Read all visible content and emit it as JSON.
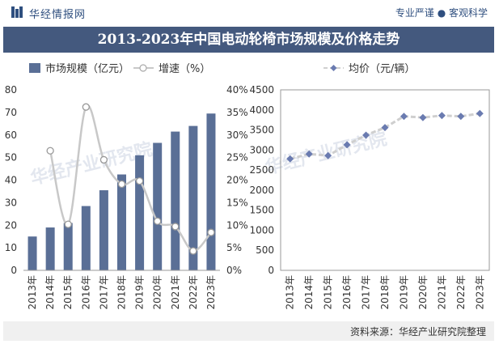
{
  "header": {
    "brand": "华经情报网",
    "slogan": "专业严谨 ● 客观科学"
  },
  "title": "2013-2023年中国电动轮椅市场规模及价格走势",
  "footer": {
    "source": "资料来源：华经产业研究院整理"
  },
  "watermark": "华经产业研究院",
  "colors": {
    "bar": "#5a6f96",
    "growth_line": "#c8c8c8",
    "price_line": "#cfcfcf",
    "price_marker": "#6a7bb0",
    "title_bg": "#44597e"
  },
  "chart_data": [
    {
      "type": "bar+line",
      "legend": [
        "市场规模（亿元）",
        "增速（%）"
      ],
      "categories": [
        "2013年",
        "2014年",
        "2015年",
        "2016年",
        "2017年",
        "2018年",
        "2019年",
        "2020年",
        "2021年",
        "2022年",
        "2023年"
      ],
      "series": [
        {
          "name": "市场规模（亿元）",
          "type": "bar",
          "axis": "left",
          "values": [
            15.0,
            19.0,
            21.0,
            28.5,
            35.5,
            42.5,
            51.0,
            56.5,
            61.5,
            64.0,
            69.5
          ]
        },
        {
          "name": "增速（%）",
          "type": "line",
          "axis": "right",
          "values": [
            null,
            26.5,
            10.2,
            36.2,
            24.5,
            19.1,
            19.8,
            10.9,
            9.7,
            4.3,
            8.4
          ]
        }
      ],
      "y_left": {
        "min": 0,
        "max": 80,
        "ticks": [
          "0",
          "10",
          "20",
          "30",
          "40",
          "50",
          "60",
          "70",
          "80"
        ]
      },
      "y_right": {
        "min": 0,
        "max": 40,
        "ticks": [
          "0%",
          "5%",
          "10%",
          "15%",
          "20%",
          "25%",
          "30%",
          "35%",
          "40%"
        ]
      }
    },
    {
      "type": "line",
      "legend": [
        "均价（元/辆）"
      ],
      "categories": [
        "2013年",
        "2014年",
        "2015年",
        "2016年",
        "2017年",
        "2018年",
        "2019年",
        "2020年",
        "2021年",
        "2022年",
        "2023年"
      ],
      "series": [
        {
          "name": "均价（元/辆）",
          "values": [
            2780,
            2900,
            2860,
            3130,
            3370,
            3560,
            3840,
            3810,
            3860,
            3840,
            3910
          ]
        }
      ],
      "y": {
        "min": 0,
        "max": 4500,
        "ticks": [
          "0",
          "500",
          "1000",
          "1500",
          "2000",
          "2500",
          "3000",
          "3500",
          "4000",
          "4500"
        ]
      }
    }
  ]
}
